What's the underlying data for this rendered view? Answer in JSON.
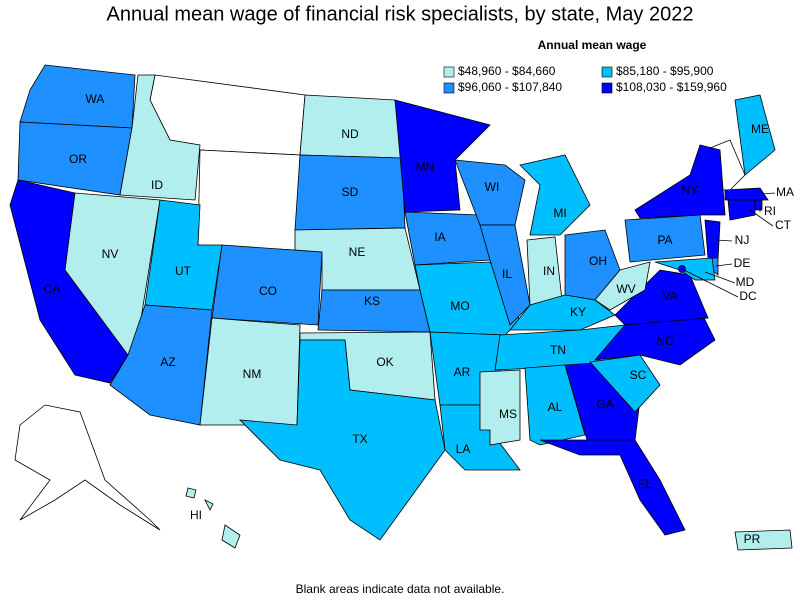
{
  "title": "Annual mean wage of financial risk specialists, by state, May 2022",
  "legend": {
    "title": "Annual mean wage",
    "bins": [
      {
        "label": "$48,960 - $84,660",
        "color": "#b2eeee"
      },
      {
        "label": "$85,180 - $95,900",
        "color": "#00bfff"
      },
      {
        "label": "$96,060 - $107,840",
        "color": "#1e90ff"
      },
      {
        "label": "$108,030 - $159,960",
        "color": "#0000ff"
      }
    ]
  },
  "states": [
    {
      "abbr": "WA",
      "bin": 2
    },
    {
      "abbr": "OR",
      "bin": 2
    },
    {
      "abbr": "CA",
      "bin": 3
    },
    {
      "abbr": "ID",
      "bin": 0
    },
    {
      "abbr": "NV",
      "bin": 0
    },
    {
      "abbr": "UT",
      "bin": 1
    },
    {
      "abbr": "AZ",
      "bin": 2
    },
    {
      "abbr": "CO",
      "bin": 2
    },
    {
      "abbr": "NM",
      "bin": 0
    },
    {
      "abbr": "ND",
      "bin": 0
    },
    {
      "abbr": "SD",
      "bin": 2
    },
    {
      "abbr": "NE",
      "bin": 0
    },
    {
      "abbr": "KS",
      "bin": 2
    },
    {
      "abbr": "OK",
      "bin": 0
    },
    {
      "abbr": "TX",
      "bin": 1
    },
    {
      "abbr": "MN",
      "bin": 3
    },
    {
      "abbr": "IA",
      "bin": 2
    },
    {
      "abbr": "MO",
      "bin": 1
    },
    {
      "abbr": "AR",
      "bin": 1
    },
    {
      "abbr": "LA",
      "bin": 1
    },
    {
      "abbr": "WI",
      "bin": 2
    },
    {
      "abbr": "IL",
      "bin": 2
    },
    {
      "abbr": "MI",
      "bin": 1
    },
    {
      "abbr": "IN",
      "bin": 0
    },
    {
      "abbr": "OH",
      "bin": 2
    },
    {
      "abbr": "KY",
      "bin": 1
    },
    {
      "abbr": "TN",
      "bin": 1
    },
    {
      "abbr": "MS",
      "bin": 0
    },
    {
      "abbr": "AL",
      "bin": 1
    },
    {
      "abbr": "GA",
      "bin": 3
    },
    {
      "abbr": "FL",
      "bin": 3
    },
    {
      "abbr": "SC",
      "bin": 1
    },
    {
      "abbr": "NC",
      "bin": 3
    },
    {
      "abbr": "VA",
      "bin": 3
    },
    {
      "abbr": "WV",
      "bin": 0
    },
    {
      "abbr": "PA",
      "bin": 2
    },
    {
      "abbr": "NY",
      "bin": 3
    },
    {
      "abbr": "ME",
      "bin": 1
    },
    {
      "abbr": "MA",
      "bin": 3
    },
    {
      "abbr": "RI",
      "bin": 3
    },
    {
      "abbr": "CT",
      "bin": 3
    },
    {
      "abbr": "NJ",
      "bin": 3
    },
    {
      "abbr": "DE",
      "bin": 2
    },
    {
      "abbr": "MD",
      "bin": 1
    },
    {
      "abbr": "DC",
      "bin": 3
    },
    {
      "abbr": "HI",
      "bin": 0
    },
    {
      "abbr": "PR",
      "bin": 0
    }
  ],
  "footnote": "Blank areas indicate data not available."
}
